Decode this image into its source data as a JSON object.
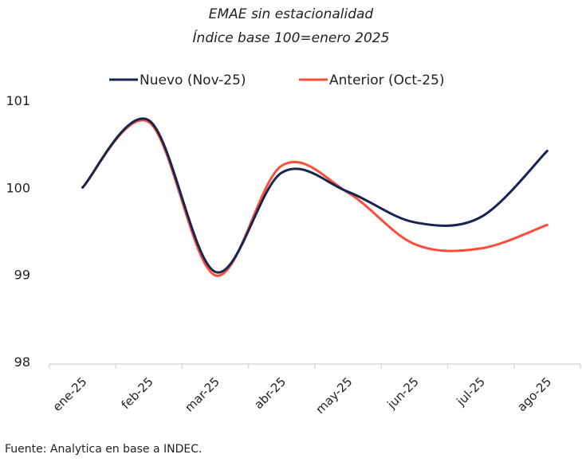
{
  "chart_data": {
    "type": "line",
    "title": "EMAE sin estacionalidad",
    "subtitle": "Índice base 100=enero 2025",
    "categories": [
      "ene-25",
      "feb-25",
      "mar-25",
      "abr-25",
      "may-25",
      "jun-25",
      "jul-25",
      "ago-25"
    ],
    "series": [
      {
        "name": "Nuevo (Nov-25)",
        "color": "#14254f",
        "values": [
          100.0,
          100.77,
          99.03,
          100.17,
          99.95,
          99.6,
          99.66,
          100.42
        ]
      },
      {
        "name": "Anterior (Oct-25)",
        "color": "#ff4b3a",
        "values": [
          100.0,
          100.75,
          98.99,
          100.25,
          99.94,
          99.35,
          99.3,
          99.57
        ]
      }
    ],
    "ylim": [
      98,
      101
    ],
    "yticks": [
      "98",
      "99",
      "100",
      "101"
    ],
    "grid": false,
    "smooth": true,
    "legend": "top"
  },
  "source": "Fuente: Analytica en base a INDEC."
}
